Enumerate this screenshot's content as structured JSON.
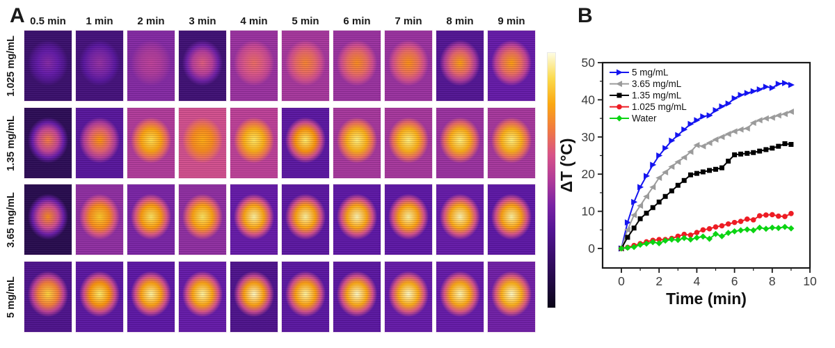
{
  "panel_a": {
    "label": "A",
    "column_headers": [
      "0.5 min",
      "1 min",
      "2 min",
      "3 min",
      "4 min",
      "5 min",
      "6 min",
      "7 min",
      "8 min",
      "9 min"
    ],
    "row_labels": [
      "1.025 mg/mL",
      "1.35 mg/mL",
      "3.65 mg/mL",
      "5 mg/mL"
    ],
    "cell_heat": [
      [
        [
          0.2,
          0.42
        ],
        [
          0.24,
          0.45
        ],
        [
          0.42,
          0.52
        ],
        [
          0.22,
          0.62
        ],
        [
          0.46,
          0.66
        ],
        [
          0.48,
          0.72
        ],
        [
          0.46,
          0.74
        ],
        [
          0.46,
          0.75
        ],
        [
          0.3,
          0.78
        ],
        [
          0.36,
          0.78
        ]
      ],
      [
        [
          0.14,
          0.7
        ],
        [
          0.32,
          0.76
        ],
        [
          0.5,
          0.9
        ],
        [
          0.58,
          0.8
        ],
        [
          0.52,
          0.92
        ],
        [
          0.33,
          0.93
        ],
        [
          0.48,
          0.94
        ],
        [
          0.48,
          0.94
        ],
        [
          0.46,
          0.94
        ],
        [
          0.48,
          0.94
        ]
      ],
      [
        [
          0.12,
          0.74
        ],
        [
          0.44,
          0.86
        ],
        [
          0.4,
          0.92
        ],
        [
          0.44,
          0.92
        ],
        [
          0.36,
          0.96
        ],
        [
          0.33,
          0.96
        ],
        [
          0.34,
          0.97
        ],
        [
          0.34,
          0.96
        ],
        [
          0.36,
          0.97
        ],
        [
          0.34,
          0.96
        ]
      ],
      [
        [
          0.28,
          0.88
        ],
        [
          0.33,
          0.93
        ],
        [
          0.34,
          0.96
        ],
        [
          0.36,
          0.96
        ],
        [
          0.28,
          0.98
        ],
        [
          0.33,
          0.96
        ],
        [
          0.33,
          0.98
        ],
        [
          0.36,
          0.98
        ],
        [
          0.36,
          0.97
        ],
        [
          0.38,
          0.98
        ]
      ]
    ],
    "palette": [
      [
        0.0,
        "#0a0516"
      ],
      [
        0.12,
        "#260a4d"
      ],
      [
        0.25,
        "#45107e"
      ],
      [
        0.35,
        "#5f17a8"
      ],
      [
        0.45,
        "#932f9f"
      ],
      [
        0.52,
        "#bc3f96"
      ],
      [
        0.6,
        "#d85388"
      ],
      [
        0.68,
        "#ee7253"
      ],
      [
        0.76,
        "#fa9207"
      ],
      [
        0.85,
        "#fcc31e"
      ],
      [
        0.93,
        "#fbe869"
      ],
      [
        1.0,
        "#fdfce2"
      ]
    ]
  },
  "panel_b": {
    "label": "B"
  },
  "chart_data": {
    "type": "line",
    "title": "",
    "xlabel": "Time (min)",
    "ylabel": "ΔT (°C)",
    "xlim": [
      -1,
      10
    ],
    "ylim": [
      -5,
      50
    ],
    "xticks": [
      0,
      2,
      4,
      6,
      8,
      10
    ],
    "x_minor": [
      1,
      3,
      5,
      7,
      9
    ],
    "yticks": [
      0,
      10,
      20,
      30,
      40,
      50
    ],
    "y_minor": [
      5,
      15,
      25,
      35,
      45
    ],
    "grid": false,
    "legend_position": "top-left",
    "x": [
      0,
      0.33,
      0.67,
      1,
      1.33,
      1.67,
      2,
      2.33,
      2.67,
      3,
      3.33,
      3.67,
      4,
      4.33,
      4.67,
      5,
      5.33,
      5.67,
      6,
      6.33,
      6.67,
      7,
      7.33,
      7.67,
      8,
      8.33,
      8.67,
      9
    ],
    "series": [
      {
        "name": "5 mg/mL",
        "color": "#1414f0",
        "marker": "triangle-right",
        "values": [
          0,
          7,
          12.5,
          16.5,
          19.5,
          22.5,
          25,
          27,
          29,
          30.5,
          32,
          33.5,
          34.5,
          35.5,
          35.8,
          37.2,
          38.2,
          39,
          40.4,
          41.3,
          41.8,
          42.3,
          42.8,
          43.5,
          43.2,
          44.3,
          44.5,
          44
        ]
      },
      {
        "name": "3.65 mg/mL",
        "color": "#9b9b9b",
        "marker": "triangle-left",
        "values": [
          0,
          5,
          9,
          11.5,
          14,
          16.5,
          19,
          20.5,
          22,
          23.3,
          24.5,
          26,
          27.8,
          27.5,
          28.4,
          29.3,
          30,
          30.8,
          31.5,
          32,
          32.3,
          33.8,
          34.5,
          35,
          35.2,
          35.8,
          36.2,
          36.8
        ]
      },
      {
        "name": "1.35 mg/mL",
        "color": "#000000",
        "marker": "square",
        "values": [
          0,
          3,
          5.5,
          8,
          9.5,
          11,
          12.5,
          14,
          15.5,
          17,
          18.3,
          19.8,
          20.2,
          20.6,
          21,
          21.3,
          21.7,
          23.5,
          25.2,
          25.4,
          25.6,
          25.8,
          26.2,
          26.6,
          27,
          27.5,
          28.2,
          28
        ]
      },
      {
        "name": "1.025 mg/mL",
        "color": "#ed1c24",
        "marker": "circle",
        "values": [
          0,
          0.3,
          0.8,
          1.3,
          1.8,
          2.2,
          2.4,
          2.4,
          2.7,
          3.3,
          3.8,
          3.6,
          4.3,
          5,
          5.3,
          5.8,
          6.1,
          6.6,
          7,
          7.3,
          7.9,
          7.7,
          8.8,
          9,
          9.1,
          8.7,
          8.6,
          9.4
        ]
      },
      {
        "name": "Water",
        "color": "#0bd413",
        "marker": "diamond",
        "values": [
          0,
          0.2,
          0.4,
          1,
          1.3,
          1.7,
          1.4,
          2.1,
          2.4,
          2.3,
          2.8,
          2.4,
          2.9,
          3.2,
          2.6,
          3.9,
          3.3,
          4.2,
          4.6,
          4.9,
          5.1,
          4.9,
          5.6,
          5.3,
          5.6,
          5.5,
          5.8,
          5.4
        ]
      }
    ]
  }
}
